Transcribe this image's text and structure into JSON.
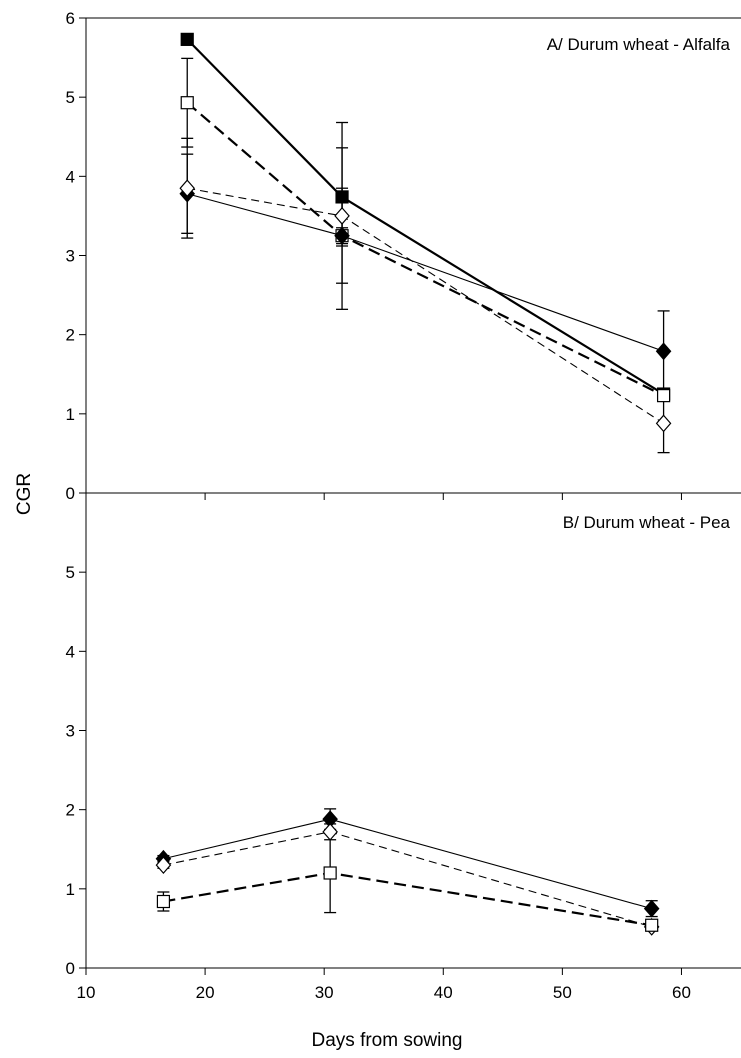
{
  "chart_data": [
    {
      "type": "line",
      "title": "A/ Durum wheat - Alfalfa",
      "xlabel": "",
      "ylabel": "CGR",
      "xlim": [
        10,
        65
      ],
      "ylim": [
        0,
        6
      ],
      "yticks": [
        0,
        1,
        2,
        3,
        4,
        5,
        6
      ],
      "legend": "none",
      "grid": false,
      "series": [
        {
          "marker": "square-filled",
          "line": "solid-thick",
          "x": [
            18.5,
            31.5,
            58.5
          ],
          "y": [
            5.73,
            3.74,
            1.25
          ],
          "err": [
            0.05,
            0.62,
            0.06
          ]
        },
        {
          "marker": "square-open",
          "line": "dashed-thick",
          "x": [
            18.5,
            31.5,
            58.5
          ],
          "y": [
            4.93,
            3.25,
            1.23
          ],
          "err": [
            0.56,
            0.6,
            0.06
          ]
        },
        {
          "marker": "diamond-filled",
          "line": "solid-thin",
          "x": [
            18.5,
            31.5,
            58.5
          ],
          "y": [
            3.78,
            3.25,
            1.79
          ],
          "err": [
            0.5,
            0.1,
            0.51
          ]
        },
        {
          "marker": "diamond-open",
          "line": "dashed-thin",
          "x": [
            18.5,
            31.5,
            58.5
          ],
          "y": [
            3.85,
            3.5,
            0.88
          ],
          "err": [
            0.63,
            1.18,
            0.37
          ]
        }
      ]
    },
    {
      "type": "line",
      "title": "B/ Durum wheat - Pea",
      "xlabel": "Days from sowing",
      "ylabel": "CGR",
      "xlim": [
        10,
        65
      ],
      "ylim": [
        0,
        6
      ],
      "xticks": [
        10,
        20,
        30,
        40,
        50,
        60
      ],
      "yticks": [
        0,
        1,
        2,
        3,
        4,
        5
      ],
      "legend": "none",
      "grid": false,
      "series": [
        {
          "marker": "diamond-filled",
          "line": "solid-thin",
          "x": [
            16.5,
            30.5,
            57.5
          ],
          "y": [
            1.38,
            1.88,
            0.75
          ],
          "err": [
            0.04,
            0.13,
            0.1
          ]
        },
        {
          "marker": "diamond-open",
          "line": "dashed-thin",
          "x": [
            16.5,
            30.5,
            57.5
          ],
          "y": [
            1.3,
            1.72,
            0.52
          ],
          "err": [
            0.04,
            0.1,
            0.04
          ]
        },
        {
          "marker": "square-open",
          "line": "dashed-thick",
          "x": [
            16.5,
            30.5,
            57.5
          ],
          "y": [
            0.84,
            1.2,
            0.54
          ],
          "err": [
            0.12,
            0.5,
            0.05
          ]
        }
      ]
    }
  ]
}
